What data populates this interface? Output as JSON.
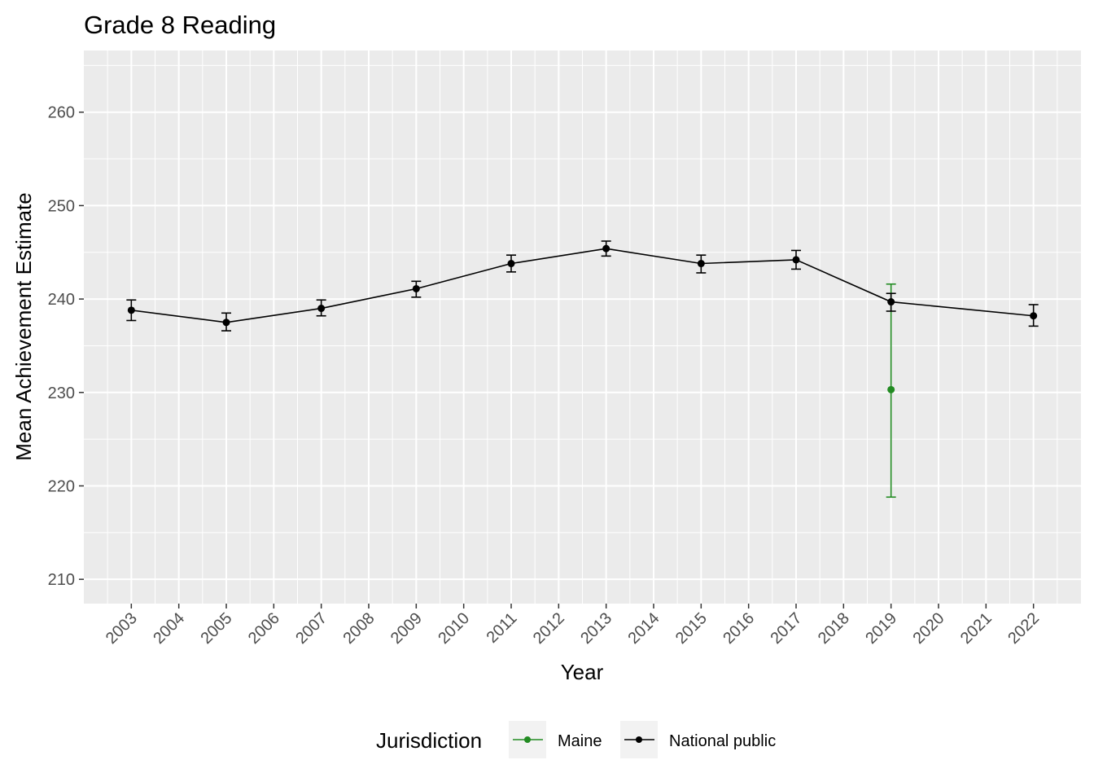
{
  "chart_data": {
    "type": "line",
    "title": "Grade 8 Reading",
    "xlabel": "Year",
    "ylabel": "Mean Achievement Estimate",
    "x_ticks": [
      "2003",
      "2004",
      "2005",
      "2006",
      "2007",
      "2008",
      "2009",
      "2010",
      "2011",
      "2012",
      "2013",
      "2014",
      "2015",
      "2016",
      "2017",
      "2018",
      "2019",
      "2020",
      "2021",
      "2022"
    ],
    "y_ticks": [
      210,
      220,
      230,
      240,
      250,
      260
    ],
    "xlim": [
      2002,
      2023
    ],
    "ylim": [
      207.4,
      266.6
    ],
    "grid": true,
    "legend": {
      "title": "Jurisdiction",
      "position": "bottom",
      "entries": [
        "Maine",
        "National public"
      ]
    },
    "series": [
      {
        "name": "Maine",
        "color": "#228B22",
        "points": [
          {
            "x": 2019,
            "y": 230.3,
            "lower": 218.8,
            "upper": 241.6
          }
        ]
      },
      {
        "name": "National public",
        "color": "#000000",
        "points": [
          {
            "x": 2003,
            "y": 238.8,
            "lower": 237.7,
            "upper": 239.9
          },
          {
            "x": 2005,
            "y": 237.5,
            "lower": 236.6,
            "upper": 238.5
          },
          {
            "x": 2007,
            "y": 239.0,
            "lower": 238.2,
            "upper": 239.9
          },
          {
            "x": 2009,
            "y": 241.1,
            "lower": 240.2,
            "upper": 241.9
          },
          {
            "x": 2011,
            "y": 243.8,
            "lower": 242.9,
            "upper": 244.7
          },
          {
            "x": 2013,
            "y": 245.4,
            "lower": 244.6,
            "upper": 246.2
          },
          {
            "x": 2015,
            "y": 243.8,
            "lower": 242.8,
            "upper": 244.7
          },
          {
            "x": 2017,
            "y": 244.2,
            "lower": 243.2,
            "upper": 245.2
          },
          {
            "x": 2019,
            "y": 239.7,
            "lower": 238.7,
            "upper": 240.6
          },
          {
            "x": 2022,
            "y": 238.2,
            "lower": 237.1,
            "upper": 239.4
          }
        ]
      }
    ]
  }
}
